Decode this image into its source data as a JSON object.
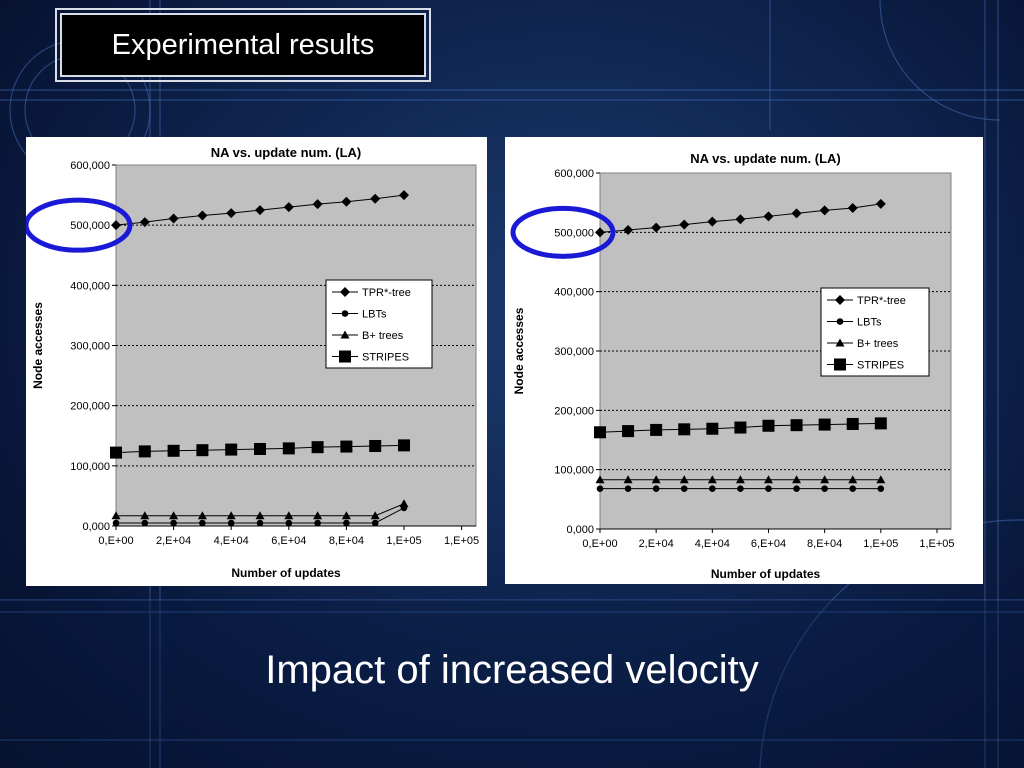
{
  "slide": {
    "title": "Experimental results",
    "caption": "Impact of increased velocity"
  },
  "colors": {
    "plot_background": "#c0c0c0",
    "highlight_circle": "#1a1ad6",
    "series": "#000000"
  },
  "chart_data": [
    {
      "type": "line",
      "title": "NA vs. update num. (LA)",
      "xlabel": "Number of updates",
      "ylabel": "Node accesses",
      "xlim": [
        0,
        125000
      ],
      "ylim": [
        0,
        600000
      ],
      "x_ticks": [
        0,
        20000,
        40000,
        60000,
        80000,
        100000,
        120000
      ],
      "x_tick_labels": [
        "0,E+00",
        "2,E+04",
        "4,E+04",
        "6,E+04",
        "8,E+04",
        "1,E+05",
        "1,E+05"
      ],
      "y_ticks": [
        0,
        100000,
        200000,
        300000,
        400000,
        500000,
        600000
      ],
      "y_tick_labels": [
        "0,000",
        "100,000",
        "200,000",
        "300,000",
        "400,000",
        "500,000",
        "600,000"
      ],
      "grid": "horizontal-dotted",
      "legend": "right",
      "x": [
        0,
        10000,
        20000,
        30000,
        40000,
        50000,
        60000,
        70000,
        80000,
        90000,
        100000
      ],
      "series": [
        {
          "name": "TPR*-tree",
          "marker": "diamond",
          "values": [
            500000,
            505000,
            511000,
            516000,
            520000,
            525000,
            530000,
            535000,
            539000,
            544000,
            550000
          ]
        },
        {
          "name": "LBTs",
          "marker": "circle",
          "values": [
            5000,
            5000,
            5000,
            5000,
            5000,
            5000,
            5000,
            5000,
            5000,
            5000,
            30000
          ]
        },
        {
          "name": "B+ trees",
          "marker": "triangle",
          "values": [
            17000,
            17000,
            17000,
            17000,
            17000,
            17000,
            17000,
            17000,
            17000,
            17000,
            37000
          ]
        },
        {
          "name": "STRIPES",
          "marker": "square",
          "values": [
            122000,
            124000,
            125000,
            126000,
            127000,
            128000,
            129000,
            131000,
            132000,
            133000,
            134000
          ]
        }
      ],
      "annotation": {
        "type": "circle",
        "target_y": 500000
      }
    },
    {
      "type": "line",
      "title": "NA vs. update num. (LA)",
      "xlabel": "Number of updates",
      "ylabel": "Node accesses",
      "xlim": [
        0,
        125000
      ],
      "ylim": [
        0,
        600000
      ],
      "x_ticks": [
        0,
        20000,
        40000,
        60000,
        80000,
        100000,
        120000
      ],
      "x_tick_labels": [
        "0,E+00",
        "2,E+04",
        "4,E+04",
        "6,E+04",
        "8,E+04",
        "1,E+05",
        "1,E+05"
      ],
      "y_ticks": [
        0,
        100000,
        200000,
        300000,
        400000,
        500000,
        600000
      ],
      "y_tick_labels": [
        "0,000",
        "100,000",
        "200,000",
        "300,000",
        "400,000",
        "500,000",
        "600,000"
      ],
      "grid": "horizontal-dotted",
      "legend": "right",
      "x": [
        0,
        10000,
        20000,
        30000,
        40000,
        50000,
        60000,
        70000,
        80000,
        90000,
        100000
      ],
      "series": [
        {
          "name": "TPR*-tree",
          "marker": "diamond",
          "values": [
            500000,
            504000,
            508000,
            513000,
            518000,
            522000,
            527000,
            532000,
            537000,
            541000,
            548000
          ]
        },
        {
          "name": "LBTs",
          "marker": "circle",
          "values": [
            68000,
            68000,
            68000,
            68000,
            68000,
            68000,
            68000,
            68000,
            68000,
            68000,
            68000
          ]
        },
        {
          "name": "B+ trees",
          "marker": "triangle",
          "values": [
            83000,
            83000,
            83000,
            83000,
            83000,
            83000,
            83000,
            83000,
            83000,
            83000,
            83000
          ]
        },
        {
          "name": "STRIPES",
          "marker": "square",
          "values": [
            163000,
            165000,
            167000,
            168000,
            169000,
            171000,
            174000,
            175000,
            176000,
            177000,
            178000
          ]
        }
      ],
      "annotation": {
        "type": "circle",
        "target_y": 500000
      }
    }
  ]
}
